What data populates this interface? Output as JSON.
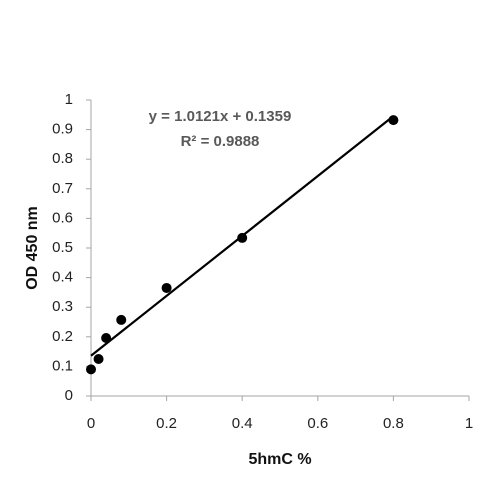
{
  "chart_data": {
    "type": "scatter",
    "x_label": "5hmC %",
    "y_label": "OD 450 nm",
    "x": [
      0,
      0.02,
      0.04,
      0.08,
      0.2,
      0.4,
      0.8
    ],
    "series": [
      {
        "color": "#000000",
        "values": [
          0.09,
          0.125,
          0.196,
          0.257,
          0.365,
          0.534,
          0.932
        ]
      }
    ],
    "trendline": {
      "slope": 1.0121,
      "intercept": 0.1359,
      "color": "#000000"
    },
    "annotations": [
      "y = 1.0121x + 0.1359",
      "R² = 0.9888"
    ],
    "xlim": [
      0,
      1
    ],
    "xticks": [
      0,
      0.2,
      0.4,
      0.6,
      0.8,
      1
    ],
    "ylim": [
      0,
      1
    ],
    "yticks": [
      0,
      0.1,
      0.2,
      0.3,
      0.4,
      0.5,
      0.6,
      0.7,
      0.8,
      0.9,
      1
    ],
    "grid": false
  }
}
